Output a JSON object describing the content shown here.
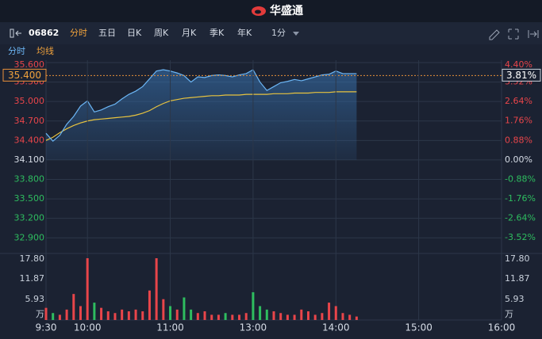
{
  "header": {
    "logo_text": "华盛通"
  },
  "toolbar": {
    "code": "06862",
    "tabs": [
      "分时",
      "五日",
      "日K",
      "周K",
      "月K",
      "季K",
      "年K"
    ],
    "active_tab": 0,
    "period": "1分"
  },
  "chart_data": [
    {
      "type": "line",
      "x": [
        "9:30",
        "9:35",
        "9:40",
        "9:45",
        "9:50",
        "9:55",
        "10:00",
        "10:05",
        "10:10",
        "10:15",
        "10:20",
        "10:25",
        "10:30",
        "10:35",
        "10:40",
        "10:45",
        "10:50",
        "10:55",
        "11:00",
        "11:05",
        "11:10",
        "11:15",
        "11:20",
        "11:25",
        "11:30",
        "11:35",
        "11:40",
        "11:45",
        "11:50",
        "11:55",
        "12:00",
        "13:05",
        "13:10",
        "13:15",
        "13:20",
        "13:25",
        "13:30",
        "13:35",
        "13:40",
        "13:45",
        "13:50",
        "13:55",
        "14:00",
        "14:05",
        "14:10",
        "14:15"
      ],
      "series": [
        {
          "name": "分时",
          "color": "#6cb6f5",
          "values": [
            34.51,
            34.39,
            34.48,
            34.65,
            34.77,
            34.93,
            35.01,
            34.84,
            34.87,
            34.92,
            34.96,
            35.04,
            35.11,
            35.16,
            35.23,
            35.35,
            35.47,
            35.49,
            35.47,
            35.44,
            35.4,
            35.3,
            35.38,
            35.37,
            35.4,
            35.41,
            35.4,
            35.38,
            35.41,
            35.43,
            35.49,
            35.3,
            35.17,
            35.23,
            35.29,
            35.31,
            35.34,
            35.32,
            35.35,
            35.38,
            35.41,
            35.42,
            35.47,
            35.43,
            35.43,
            35.43
          ]
        },
        {
          "name": "均线",
          "color": "#e8c33f",
          "values": [
            34.4,
            34.45,
            34.52,
            34.58,
            34.63,
            34.67,
            34.7,
            34.72,
            34.73,
            34.74,
            34.75,
            34.76,
            34.77,
            34.79,
            34.82,
            34.86,
            34.92,
            34.97,
            35.01,
            35.03,
            35.05,
            35.06,
            35.07,
            35.08,
            35.09,
            35.09,
            35.1,
            35.1,
            35.1,
            35.11,
            35.11,
            35.11,
            35.11,
            35.12,
            35.12,
            35.12,
            35.13,
            35.13,
            35.13,
            35.14,
            35.14,
            35.14,
            35.15,
            35.15,
            35.15,
            35.15
          ]
        }
      ],
      "xlim": [
        "9:30",
        "16:00"
      ],
      "ylim": [
        32.72,
        35.6
      ],
      "yticks": [
        {
          "value": 35.6,
          "label": "35.600"
        },
        {
          "value": 35.3,
          "label": "35.300"
        },
        {
          "value": 35.0,
          "label": "35.000"
        },
        {
          "value": 34.7,
          "label": "34.700"
        },
        {
          "value": 34.4,
          "label": "34.400"
        },
        {
          "value": 34.1,
          "label": "34.100"
        },
        {
          "value": 33.8,
          "label": "33.800"
        },
        {
          "value": 33.5,
          "label": "33.500"
        },
        {
          "value": 33.2,
          "label": "33.200"
        },
        {
          "value": 32.9,
          "label": "32.900"
        }
      ],
      "y2lim": [
        -4.05,
        4.4
      ],
      "y2ticks": [
        {
          "value": 4.4,
          "label": "4.40%"
        },
        {
          "value": 3.52,
          "label": "3.52%"
        },
        {
          "value": 2.64,
          "label": "2.64%"
        },
        {
          "value": 1.76,
          "label": "1.76%"
        },
        {
          "value": 0.88,
          "label": "0.88%"
        },
        {
          "value": 0,
          "label": "0.00%"
        },
        {
          "value": -0.88,
          "label": "-0.88%"
        },
        {
          "value": -1.76,
          "label": "-1.76%"
        },
        {
          "value": -2.64,
          "label": "-2.64%"
        },
        {
          "value": -3.52,
          "label": "-3.52%"
        }
      ],
      "crosshair": {
        "price": {
          "value": 35.4,
          "label": "35.400"
        },
        "change": {
          "value": 3.81,
          "label": "3.81%"
        }
      },
      "grid": true
    },
    {
      "type": "bar",
      "x": [
        "9:30",
        "9:35",
        "9:40",
        "9:45",
        "9:50",
        "9:55",
        "10:00",
        "10:05",
        "10:10",
        "10:15",
        "10:20",
        "10:25",
        "10:30",
        "10:35",
        "10:40",
        "10:45",
        "10:50",
        "10:55",
        "11:00",
        "11:05",
        "11:10",
        "11:15",
        "11:20",
        "11:25",
        "11:30",
        "11:35",
        "11:40",
        "11:45",
        "11:50",
        "11:55",
        "12:00",
        "13:05",
        "13:10",
        "13:15",
        "13:20",
        "13:25",
        "13:30",
        "13:35",
        "13:40",
        "13:45",
        "13:50",
        "13:55",
        "14:00",
        "14:05",
        "14:10",
        "14:15"
      ],
      "values": [
        3.5,
        2.0,
        1.5,
        3.0,
        7.5,
        4.0,
        17.8,
        5.0,
        3.5,
        2.5,
        2.0,
        3.0,
        2.5,
        3.0,
        2.5,
        8.5,
        17.8,
        6.0,
        4.0,
        3.0,
        6.5,
        3.0,
        2.0,
        2.5,
        1.5,
        1.5,
        2.0,
        1.5,
        1.5,
        2.0,
        8.0,
        4.0,
        3.0,
        2.5,
        2.0,
        1.5,
        1.5,
        3.0,
        2.5,
        1.5,
        2.0,
        5.0,
        4.0,
        2.0,
        1.5,
        1.0
      ],
      "colors": [
        "#e8454a",
        "#2ebd5f",
        "#e8454a",
        "#e8454a",
        "#e8454a",
        "#e8454a",
        "#e8454a",
        "#2ebd5f",
        "#e8454a",
        "#e8454a",
        "#e8454a",
        "#e8454a",
        "#e8454a",
        "#e8454a",
        "#e8454a",
        "#e8454a",
        "#e8454a",
        "#e8454a",
        "#2ebd5f",
        "#e8454a",
        "#2ebd5f",
        "#2ebd5f",
        "#e8454a",
        "#e8454a",
        "#e8454a",
        "#e8454a",
        "#2ebd5f",
        "#e8454a",
        "#e8454a",
        "#e8454a",
        "#2ebd5f",
        "#2ebd5f",
        "#2ebd5f",
        "#e8454a",
        "#e8454a",
        "#e8454a",
        "#e8454a",
        "#e8454a",
        "#e8454a",
        "#e8454a",
        "#e8454a",
        "#e8454a",
        "#e8454a",
        "#e8454a",
        "#e8454a",
        "#e8454a"
      ],
      "unit": "万",
      "ylim": [
        0,
        17.8
      ],
      "yticks": [
        {
          "value": 17.8,
          "label": "17.80"
        },
        11.87,
        5.93
      ],
      "xlim": [
        "9:30",
        "16:00"
      ],
      "xticks": [
        "9:30",
        "10:00",
        "11:00",
        "13:00",
        "14:00",
        "15:00",
        "16:00"
      ]
    }
  ]
}
